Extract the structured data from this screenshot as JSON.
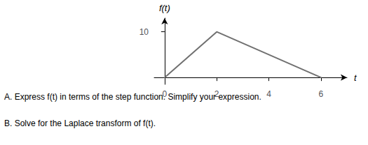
{
  "chart_data": {
    "type": "line",
    "x": [
      0,
      2,
      6
    ],
    "values": [
      0,
      10,
      0
    ],
    "color": "#707070",
    "xlim": [
      -0.4,
      7.0
    ],
    "ylim": [
      -1.5,
      13.0
    ],
    "xticks": [
      0,
      2,
      4,
      6
    ],
    "yticks": [
      10
    ],
    "xlabel": "t",
    "ylabel": "f(t)",
    "grid": false,
    "annotations": [
      "A. Express f(t) in terms of the step function. Simplify your expression.",
      "B. Solve for the Laplace transform of f(t)."
    ]
  }
}
